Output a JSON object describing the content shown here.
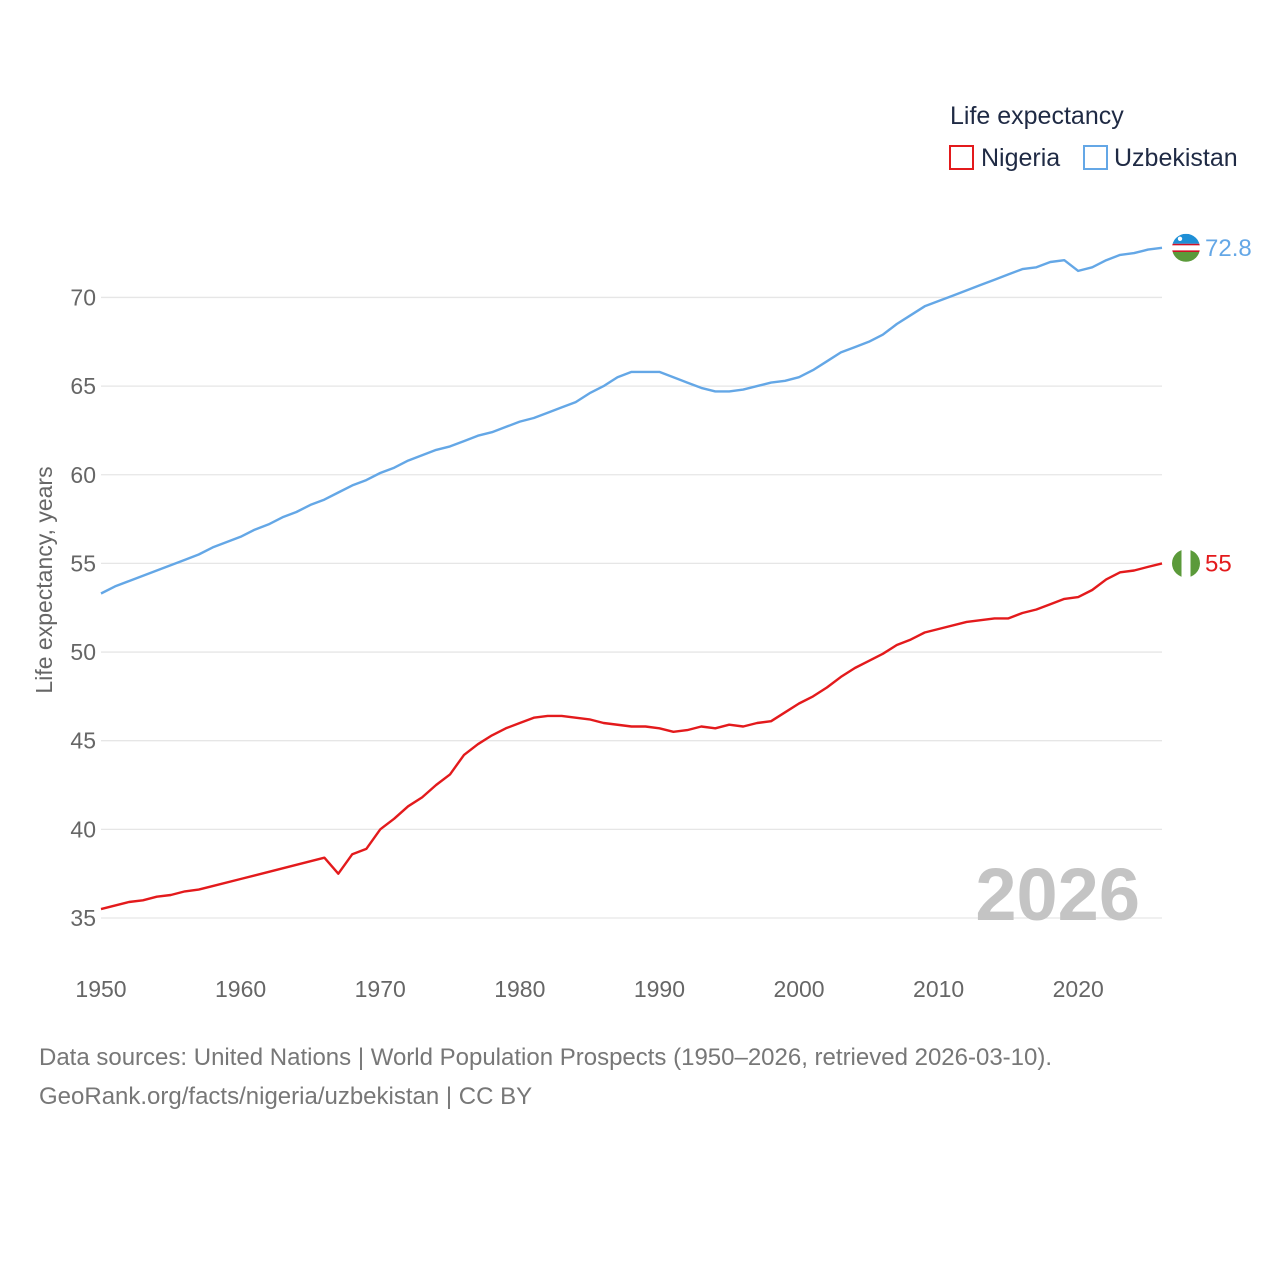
{
  "chart_data": {
    "type": "line",
    "legend_title": "Life expectancy",
    "ylabel": "Life expectancy, years",
    "xlim": [
      1950,
      2026
    ],
    "ylim": [
      33,
      74
    ],
    "y_ticks": [
      35,
      40,
      45,
      50,
      55,
      60,
      65,
      70
    ],
    "x_ticks": [
      1950,
      1960,
      1970,
      1980,
      1990,
      2000,
      2010,
      2020
    ],
    "y_tick_labels": [
      "35",
      "40",
      "45",
      "50",
      "55",
      "60",
      "65",
      "70"
    ],
    "x_tick_labels": [
      "1950",
      "1960",
      "1970",
      "1980",
      "1990",
      "2000",
      "2010",
      "2020"
    ],
    "year_watermark": "2026",
    "legend_placement": "top-right",
    "series": [
      {
        "name": "Nigeria",
        "color": "#e31a1c",
        "flag": "nigeria-flag",
        "end_label": "55",
        "points": [
          [
            1950,
            35.5
          ],
          [
            1952,
            35.9
          ],
          [
            1953,
            36.0
          ],
          [
            1954,
            36.2
          ],
          [
            1955,
            36.3
          ],
          [
            1956,
            36.5
          ],
          [
            1957,
            36.6
          ],
          [
            1958,
            36.8
          ],
          [
            1960,
            37.2
          ],
          [
            1962,
            37.6
          ],
          [
            1964,
            38.0
          ],
          [
            1966,
            38.4
          ],
          [
            1967,
            37.5
          ],
          [
            1968,
            38.6
          ],
          [
            1969,
            38.9
          ],
          [
            1970,
            40.0
          ],
          [
            1971,
            40.6
          ],
          [
            1972,
            41.3
          ],
          [
            1973,
            41.8
          ],
          [
            1974,
            42.5
          ],
          [
            1975,
            43.1
          ],
          [
            1976,
            44.2
          ],
          [
            1977,
            44.8
          ],
          [
            1978,
            45.3
          ],
          [
            1979,
            45.7
          ],
          [
            1980,
            46.0
          ],
          [
            1981,
            46.3
          ],
          [
            1982,
            46.4
          ],
          [
            1983,
            46.4
          ],
          [
            1985,
            46.2
          ],
          [
            1986,
            46.0
          ],
          [
            1988,
            45.8
          ],
          [
            1989,
            45.8
          ],
          [
            1990,
            45.7
          ],
          [
            1991,
            45.5
          ],
          [
            1992,
            45.6
          ],
          [
            1993,
            45.8
          ],
          [
            1994,
            45.7
          ],
          [
            1995,
            45.9
          ],
          [
            1996,
            45.8
          ],
          [
            1997,
            46.0
          ],
          [
            1998,
            46.1
          ],
          [
            1999,
            46.6
          ],
          [
            2000,
            47.1
          ],
          [
            2001,
            47.5
          ],
          [
            2002,
            48.0
          ],
          [
            2003,
            48.6
          ],
          [
            2004,
            49.1
          ],
          [
            2005,
            49.5
          ],
          [
            2006,
            49.9
          ],
          [
            2007,
            50.4
          ],
          [
            2008,
            50.7
          ],
          [
            2009,
            51.1
          ],
          [
            2010,
            51.3
          ],
          [
            2012,
            51.7
          ],
          [
            2014,
            51.9
          ],
          [
            2015,
            51.9
          ],
          [
            2016,
            52.2
          ],
          [
            2017,
            52.4
          ],
          [
            2018,
            52.7
          ],
          [
            2019,
            53.0
          ],
          [
            2020,
            53.1
          ],
          [
            2021,
            53.5
          ],
          [
            2022,
            54.1
          ],
          [
            2023,
            54.5
          ],
          [
            2024,
            54.6
          ],
          [
            2025,
            54.8
          ],
          [
            2026,
            55.0
          ]
        ]
      },
      {
        "name": "Uzbekistan",
        "color": "#64a7e6",
        "flag": "uzbekistan-flag",
        "end_label": "72.8",
        "points": [
          [
            1950,
            53.3
          ],
          [
            1951,
            53.7
          ],
          [
            1952,
            54.0
          ],
          [
            1954,
            54.6
          ],
          [
            1956,
            55.2
          ],
          [
            1957,
            55.5
          ],
          [
            1958,
            55.9
          ],
          [
            1960,
            56.5
          ],
          [
            1961,
            56.9
          ],
          [
            1962,
            57.2
          ],
          [
            1963,
            57.6
          ],
          [
            1964,
            57.9
          ],
          [
            1965,
            58.3
          ],
          [
            1966,
            58.6
          ],
          [
            1967,
            59.0
          ],
          [
            1968,
            59.4
          ],
          [
            1969,
            59.7
          ],
          [
            1970,
            60.1
          ],
          [
            1971,
            60.4
          ],
          [
            1972,
            60.8
          ],
          [
            1973,
            61.1
          ],
          [
            1974,
            61.4
          ],
          [
            1975,
            61.6
          ],
          [
            1976,
            61.9
          ],
          [
            1977,
            62.2
          ],
          [
            1978,
            62.4
          ],
          [
            1979,
            62.7
          ],
          [
            1980,
            63.0
          ],
          [
            1981,
            63.2
          ],
          [
            1982,
            63.5
          ],
          [
            1983,
            63.8
          ],
          [
            1984,
            64.1
          ],
          [
            1985,
            64.6
          ],
          [
            1986,
            65.0
          ],
          [
            1987,
            65.5
          ],
          [
            1988,
            65.8
          ],
          [
            1989,
            65.8
          ],
          [
            1990,
            65.8
          ],
          [
            1991,
            65.5
          ],
          [
            1992,
            65.2
          ],
          [
            1993,
            64.9
          ],
          [
            1994,
            64.7
          ],
          [
            1995,
            64.7
          ],
          [
            1996,
            64.8
          ],
          [
            1997,
            65.0
          ],
          [
            1998,
            65.2
          ],
          [
            1999,
            65.3
          ],
          [
            2000,
            65.5
          ],
          [
            2001,
            65.9
          ],
          [
            2002,
            66.4
          ],
          [
            2003,
            66.9
          ],
          [
            2004,
            67.2
          ],
          [
            2005,
            67.5
          ],
          [
            2006,
            67.9
          ],
          [
            2007,
            68.5
          ],
          [
            2008,
            69.0
          ],
          [
            2009,
            69.5
          ],
          [
            2010,
            69.8
          ],
          [
            2011,
            70.1
          ],
          [
            2012,
            70.4
          ],
          [
            2013,
            70.7
          ],
          [
            2014,
            71.0
          ],
          [
            2015,
            71.3
          ],
          [
            2016,
            71.6
          ],
          [
            2017,
            71.7
          ],
          [
            2018,
            72.0
          ],
          [
            2019,
            72.1
          ],
          [
            2020,
            71.5
          ],
          [
            2021,
            71.7
          ],
          [
            2022,
            72.1
          ],
          [
            2023,
            72.4
          ],
          [
            2024,
            72.5
          ],
          [
            2025,
            72.7
          ],
          [
            2026,
            72.8
          ]
        ]
      }
    ]
  },
  "footer": {
    "line1": "Data sources: United Nations | World Population Prospects (1950–2026, retrieved 2026-03-10).",
    "line2": "GeoRank.org/facts/nigeria/uzbekistan | CC BY"
  }
}
